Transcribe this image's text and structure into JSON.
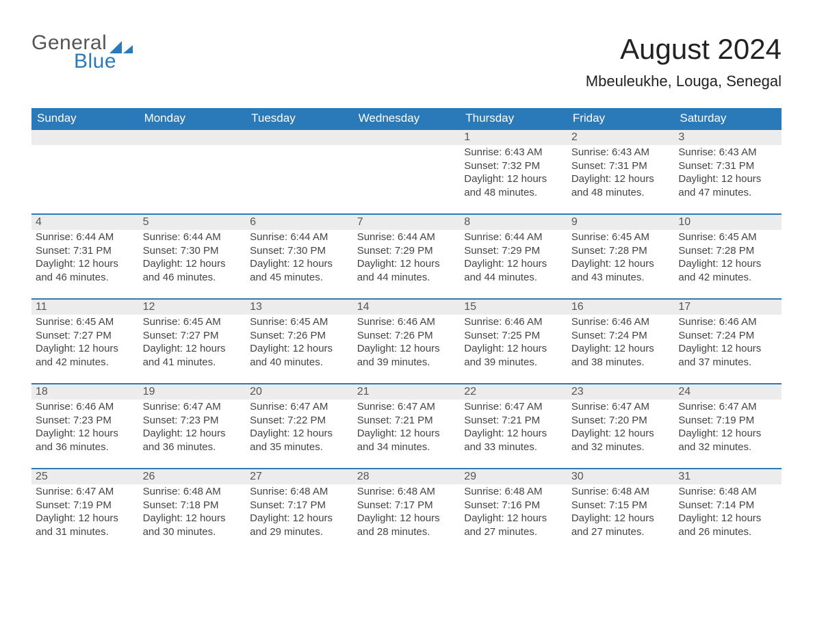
{
  "logo": {
    "word1": "General",
    "word2": "Blue"
  },
  "header": {
    "title": "August 2024",
    "location": "Mbeuleukhe, Louga, Senegal",
    "title_fontsize": 42,
    "location_fontsize": 22,
    "title_color": "#222222"
  },
  "colors": {
    "header_bg": "#2a7ab9",
    "header_text": "#ffffff",
    "daynum_bg": "#ececec",
    "row_border": "#2a7ab9",
    "body_text": "#444444",
    "background": "#ffffff"
  },
  "weekdays": [
    "Sunday",
    "Monday",
    "Tuesday",
    "Wednesday",
    "Thursday",
    "Friday",
    "Saturday"
  ],
  "leading_blanks": 4,
  "days": [
    {
      "n": 1,
      "sunrise": "6:43 AM",
      "sunset": "7:32 PM",
      "dl_h": 12,
      "dl_m": 48
    },
    {
      "n": 2,
      "sunrise": "6:43 AM",
      "sunset": "7:31 PM",
      "dl_h": 12,
      "dl_m": 48
    },
    {
      "n": 3,
      "sunrise": "6:43 AM",
      "sunset": "7:31 PM",
      "dl_h": 12,
      "dl_m": 47
    },
    {
      "n": 4,
      "sunrise": "6:44 AM",
      "sunset": "7:31 PM",
      "dl_h": 12,
      "dl_m": 46
    },
    {
      "n": 5,
      "sunrise": "6:44 AM",
      "sunset": "7:30 PM",
      "dl_h": 12,
      "dl_m": 46
    },
    {
      "n": 6,
      "sunrise": "6:44 AM",
      "sunset": "7:30 PM",
      "dl_h": 12,
      "dl_m": 45
    },
    {
      "n": 7,
      "sunrise": "6:44 AM",
      "sunset": "7:29 PM",
      "dl_h": 12,
      "dl_m": 44
    },
    {
      "n": 8,
      "sunrise": "6:44 AM",
      "sunset": "7:29 PM",
      "dl_h": 12,
      "dl_m": 44
    },
    {
      "n": 9,
      "sunrise": "6:45 AM",
      "sunset": "7:28 PM",
      "dl_h": 12,
      "dl_m": 43
    },
    {
      "n": 10,
      "sunrise": "6:45 AM",
      "sunset": "7:28 PM",
      "dl_h": 12,
      "dl_m": 42
    },
    {
      "n": 11,
      "sunrise": "6:45 AM",
      "sunset": "7:27 PM",
      "dl_h": 12,
      "dl_m": 42
    },
    {
      "n": 12,
      "sunrise": "6:45 AM",
      "sunset": "7:27 PM",
      "dl_h": 12,
      "dl_m": 41
    },
    {
      "n": 13,
      "sunrise": "6:45 AM",
      "sunset": "7:26 PM",
      "dl_h": 12,
      "dl_m": 40
    },
    {
      "n": 14,
      "sunrise": "6:46 AM",
      "sunset": "7:26 PM",
      "dl_h": 12,
      "dl_m": 39
    },
    {
      "n": 15,
      "sunrise": "6:46 AM",
      "sunset": "7:25 PM",
      "dl_h": 12,
      "dl_m": 39
    },
    {
      "n": 16,
      "sunrise": "6:46 AM",
      "sunset": "7:24 PM",
      "dl_h": 12,
      "dl_m": 38
    },
    {
      "n": 17,
      "sunrise": "6:46 AM",
      "sunset": "7:24 PM",
      "dl_h": 12,
      "dl_m": 37
    },
    {
      "n": 18,
      "sunrise": "6:46 AM",
      "sunset": "7:23 PM",
      "dl_h": 12,
      "dl_m": 36
    },
    {
      "n": 19,
      "sunrise": "6:47 AM",
      "sunset": "7:23 PM",
      "dl_h": 12,
      "dl_m": 36
    },
    {
      "n": 20,
      "sunrise": "6:47 AM",
      "sunset": "7:22 PM",
      "dl_h": 12,
      "dl_m": 35
    },
    {
      "n": 21,
      "sunrise": "6:47 AM",
      "sunset": "7:21 PM",
      "dl_h": 12,
      "dl_m": 34
    },
    {
      "n": 22,
      "sunrise": "6:47 AM",
      "sunset": "7:21 PM",
      "dl_h": 12,
      "dl_m": 33
    },
    {
      "n": 23,
      "sunrise": "6:47 AM",
      "sunset": "7:20 PM",
      "dl_h": 12,
      "dl_m": 32
    },
    {
      "n": 24,
      "sunrise": "6:47 AM",
      "sunset": "7:19 PM",
      "dl_h": 12,
      "dl_m": 32
    },
    {
      "n": 25,
      "sunrise": "6:47 AM",
      "sunset": "7:19 PM",
      "dl_h": 12,
      "dl_m": 31
    },
    {
      "n": 26,
      "sunrise": "6:48 AM",
      "sunset": "7:18 PM",
      "dl_h": 12,
      "dl_m": 30
    },
    {
      "n": 27,
      "sunrise": "6:48 AM",
      "sunset": "7:17 PM",
      "dl_h": 12,
      "dl_m": 29
    },
    {
      "n": 28,
      "sunrise": "6:48 AM",
      "sunset": "7:17 PM",
      "dl_h": 12,
      "dl_m": 28
    },
    {
      "n": 29,
      "sunrise": "6:48 AM",
      "sunset": "7:16 PM",
      "dl_h": 12,
      "dl_m": 27
    },
    {
      "n": 30,
      "sunrise": "6:48 AM",
      "sunset": "7:15 PM",
      "dl_h": 12,
      "dl_m": 27
    },
    {
      "n": 31,
      "sunrise": "6:48 AM",
      "sunset": "7:14 PM",
      "dl_h": 12,
      "dl_m": 26
    }
  ],
  "labels": {
    "sunrise": "Sunrise:",
    "sunset": "Sunset:",
    "daylight_prefix": "Daylight:",
    "hours_word": "hours",
    "and_word": "and",
    "minutes_word": "minutes."
  }
}
